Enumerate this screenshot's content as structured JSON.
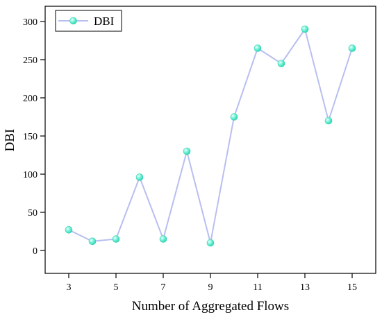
{
  "chart_data": {
    "type": "line",
    "title": "",
    "xlabel": "Number of Aggregated Flows",
    "ylabel": "DBI",
    "xlim": [
      2,
      16
    ],
    "ylim": [
      -30,
      320
    ],
    "x_ticks": [
      3,
      5,
      7,
      9,
      11,
      13,
      15
    ],
    "y_ticks": [
      0,
      50,
      100,
      150,
      200,
      250,
      300
    ],
    "grid": false,
    "legend_position": "top-left",
    "series": [
      {
        "name": "DBI",
        "line_color": "#b8bff0",
        "marker_color": "#5ff0d2",
        "x": [
          3,
          4,
          5,
          6,
          7,
          8,
          9,
          10,
          11,
          12,
          13,
          14,
          15
        ],
        "y": [
          27,
          12,
          15,
          96,
          15,
          130,
          10,
          175,
          265,
          245,
          290,
          170,
          265
        ]
      }
    ]
  }
}
